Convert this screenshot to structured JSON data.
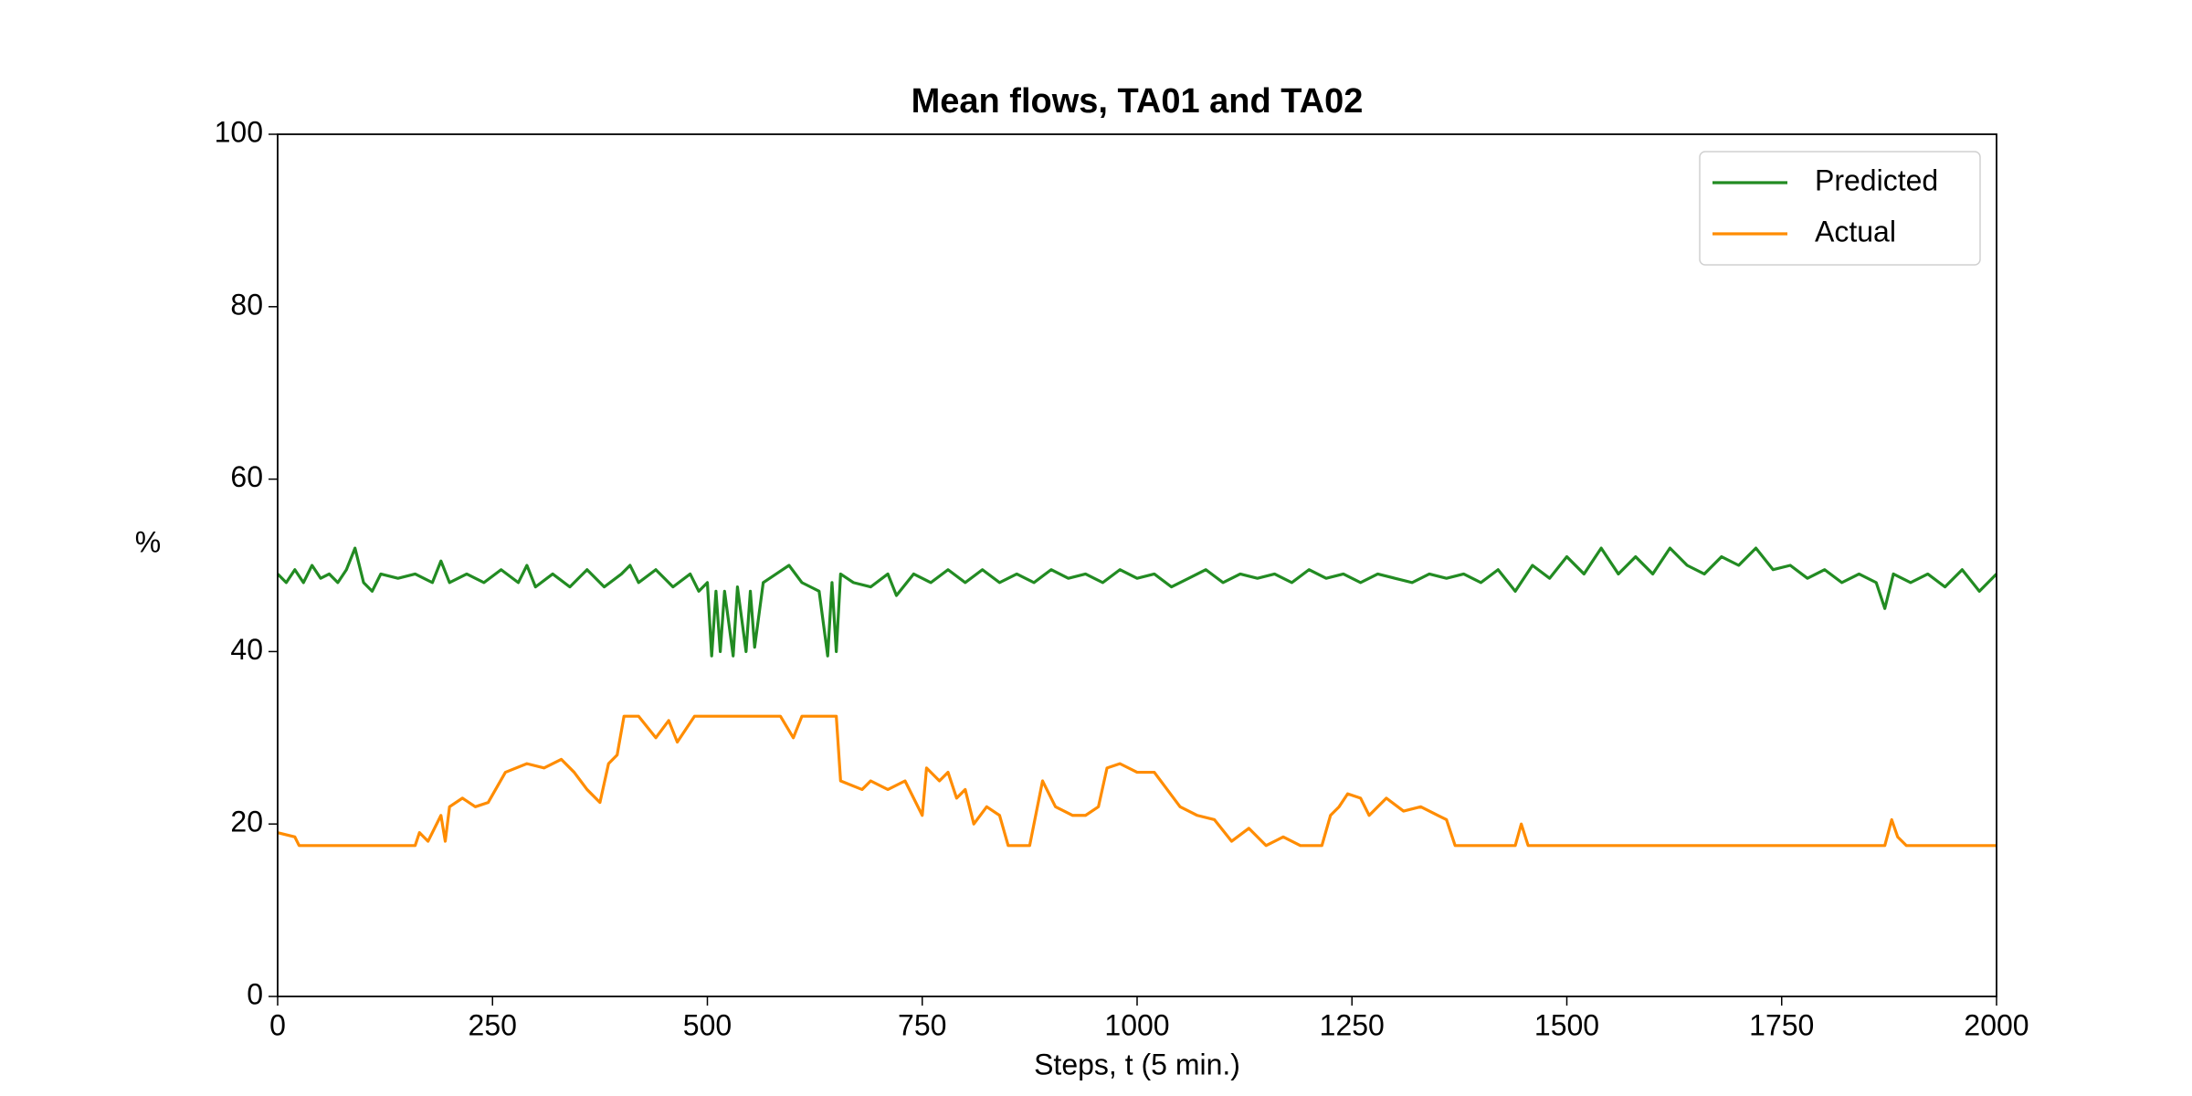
{
  "chart_data": {
    "type": "line",
    "title": "Mean flows, TA01 and TA02",
    "xlabel": "Steps, t (5 min.)",
    "ylabel": "%",
    "xlim": [
      0,
      2000
    ],
    "ylim": [
      0,
      100
    ],
    "xticks": [
      0,
      250,
      500,
      750,
      1000,
      1250,
      1500,
      1750,
      2000
    ],
    "yticks": [
      0,
      20,
      40,
      60,
      80,
      100
    ],
    "grid": false,
    "legend": "upper right",
    "series": [
      {
        "name": "Predicted",
        "color": "#228b22",
        "x": [
          0,
          10,
          20,
          30,
          40,
          50,
          60,
          70,
          80,
          90,
          100,
          110,
          120,
          140,
          160,
          180,
          190,
          200,
          220,
          240,
          260,
          280,
          290,
          300,
          320,
          340,
          360,
          380,
          400,
          410,
          420,
          440,
          460,
          480,
          490,
          500,
          505,
          510,
          515,
          520,
          530,
          535,
          545,
          550,
          555,
          565,
          580,
          595,
          610,
          630,
          640,
          645,
          650,
          655,
          670,
          690,
          710,
          720,
          740,
          760,
          780,
          800,
          820,
          840,
          860,
          880,
          900,
          920,
          940,
          960,
          980,
          1000,
          1020,
          1040,
          1060,
          1080,
          1100,
          1120,
          1140,
          1160,
          1180,
          1200,
          1220,
          1240,
          1260,
          1280,
          1300,
          1320,
          1340,
          1360,
          1380,
          1400,
          1420,
          1440,
          1460,
          1480,
          1500,
          1520,
          1540,
          1560,
          1580,
          1600,
          1620,
          1640,
          1660,
          1680,
          1700,
          1720,
          1740,
          1760,
          1780,
          1800,
          1820,
          1840,
          1860,
          1870,
          1880,
          1900,
          1920,
          1940,
          1960,
          1980,
          2000
        ],
        "values": [
          49,
          48,
          49.5,
          48,
          50,
          48.5,
          49,
          48,
          49.5,
          52,
          48,
          47,
          49,
          48.5,
          49,
          48,
          50.5,
          48,
          49,
          48,
          49.5,
          48,
          50,
          47.5,
          49,
          47.5,
          49.5,
          47.5,
          49,
          50,
          48,
          49.5,
          47.5,
          49,
          47,
          48,
          39.5,
          47,
          40,
          47,
          39.5,
          47.5,
          40,
          47,
          40.5,
          48,
          49,
          50,
          48,
          47,
          39.5,
          48,
          40,
          49,
          48,
          47.5,
          49,
          46.5,
          49,
          48,
          49.5,
          48,
          49.5,
          48,
          49,
          48,
          49.5,
          48.5,
          49,
          48,
          49.5,
          48.5,
          49,
          47.5,
          48.5,
          49.5,
          48,
          49,
          48.5,
          49,
          48,
          49.5,
          48.5,
          49,
          48,
          49,
          48.5,
          48,
          49,
          48.5,
          49,
          48,
          49.5,
          47,
          50,
          48.5,
          51,
          49,
          52,
          49,
          51,
          49,
          52,
          50,
          49,
          51,
          50,
          52,
          49.5,
          50,
          48.5,
          49.5,
          48,
          49,
          48,
          45,
          49,
          48,
          49,
          47.5,
          49.5,
          47,
          49
        ]
      },
      {
        "name": "Actual",
        "color": "#ff8c00",
        "x": [
          0,
          20,
          25,
          160,
          165,
          175,
          190,
          195,
          200,
          215,
          230,
          245,
          265,
          290,
          310,
          330,
          345,
          360,
          375,
          385,
          395,
          403,
          420,
          440,
          455,
          465,
          475,
          485,
          585,
          600,
          610,
          650,
          655,
          680,
          690,
          710,
          730,
          740,
          750,
          755,
          770,
          780,
          790,
          800,
          810,
          825,
          840,
          850,
          875,
          880,
          890,
          905,
          925,
          940,
          955,
          965,
          980,
          1000,
          1020,
          1035,
          1050,
          1070,
          1090,
          1110,
          1130,
          1150,
          1170,
          1190,
          1215,
          1225,
          1235,
          1245,
          1260,
          1270,
          1290,
          1310,
          1330,
          1350,
          1360,
          1370,
          1440,
          1447,
          1455,
          1870,
          1878,
          1885,
          1895,
          2000
        ],
        "values": [
          19,
          18.5,
          17.5,
          17.5,
          19,
          18,
          21,
          18,
          22,
          23,
          22,
          22.5,
          26,
          27,
          26.5,
          27.5,
          26,
          24,
          22.5,
          27,
          28,
          32.5,
          32.5,
          30,
          32,
          29.5,
          31,
          32.5,
          32.5,
          30,
          32.5,
          32.5,
          25,
          24,
          25,
          24,
          25,
          23,
          21,
          26.5,
          25,
          26,
          23,
          24,
          20,
          22,
          21,
          17.5,
          17.5,
          20,
          25,
          22,
          21,
          21,
          22,
          26.5,
          27,
          26,
          26,
          24,
          22,
          21,
          20.5,
          18,
          19.5,
          17.5,
          18.5,
          17.5,
          17.5,
          21,
          22,
          23.5,
          23,
          21,
          23,
          21.5,
          22,
          21,
          20.5,
          17.5,
          17.5,
          20,
          17.5,
          17.5,
          20.5,
          18.5,
          17.5,
          17.5
        ]
      }
    ]
  }
}
